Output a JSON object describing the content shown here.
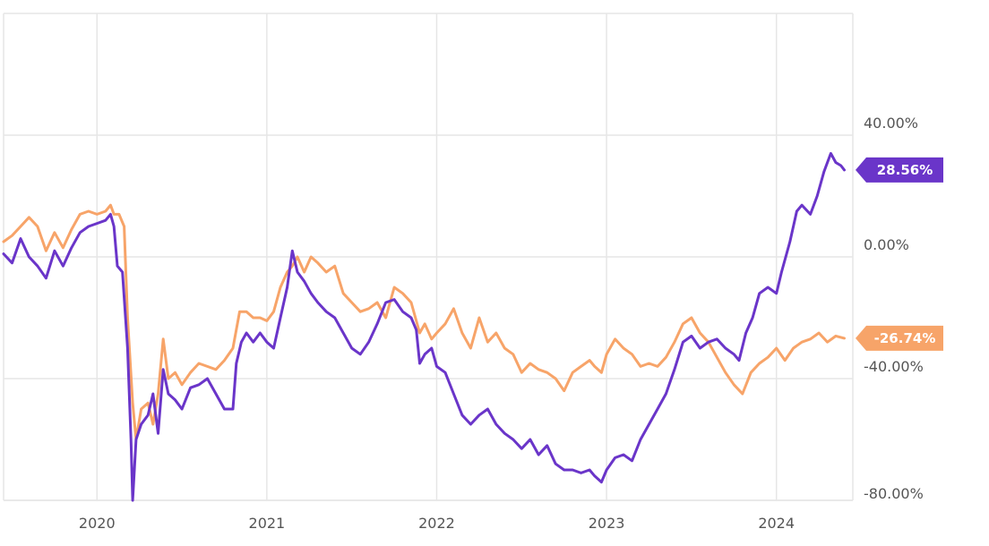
{
  "chart_data": {
    "type": "line",
    "title": "",
    "xlabel": "",
    "ylabel": "",
    "x_ticks": [
      "2020",
      "2021",
      "2022",
      "2023",
      "2024"
    ],
    "y_ticks": [
      "40.00%",
      "0.00%",
      "-40.00%",
      "-80.00%"
    ],
    "ylim": [
      -80,
      80
    ],
    "xlim": [
      2019.45,
      2024.45
    ],
    "grid": true,
    "colors": {
      "purple": "#6a35c9",
      "orange": "#f7a469"
    },
    "series": [
      {
        "key": "purple",
        "end_label": "28.56%",
        "points": [
          [
            2019.45,
            1
          ],
          [
            2019.5,
            -2
          ],
          [
            2019.55,
            6
          ],
          [
            2019.6,
            0
          ],
          [
            2019.65,
            -3
          ],
          [
            2019.7,
            -7
          ],
          [
            2019.75,
            2
          ],
          [
            2019.8,
            -3
          ],
          [
            2019.85,
            3
          ],
          [
            2019.9,
            8
          ],
          [
            2019.95,
            10
          ],
          [
            2020.0,
            11
          ],
          [
            2020.05,
            12
          ],
          [
            2020.08,
            14
          ],
          [
            2020.1,
            10
          ],
          [
            2020.12,
            -3
          ],
          [
            2020.15,
            -5
          ],
          [
            2020.18,
            -30
          ],
          [
            2020.2,
            -60
          ],
          [
            2020.21,
            -80
          ],
          [
            2020.23,
            -60
          ],
          [
            2020.26,
            -55
          ],
          [
            2020.3,
            -52
          ],
          [
            2020.33,
            -45
          ],
          [
            2020.36,
            -58
          ],
          [
            2020.39,
            -37
          ],
          [
            2020.42,
            -45
          ],
          [
            2020.46,
            -47
          ],
          [
            2020.5,
            -50
          ],
          [
            2020.55,
            -43
          ],
          [
            2020.6,
            -42
          ],
          [
            2020.65,
            -40
          ],
          [
            2020.7,
            -45
          ],
          [
            2020.75,
            -50
          ],
          [
            2020.8,
            -50
          ],
          [
            2020.82,
            -35
          ],
          [
            2020.85,
            -28
          ],
          [
            2020.88,
            -25
          ],
          [
            2020.92,
            -28
          ],
          [
            2020.96,
            -25
          ],
          [
            2021.0,
            -28
          ],
          [
            2021.04,
            -30
          ],
          [
            2021.08,
            -20
          ],
          [
            2021.12,
            -10
          ],
          [
            2021.15,
            2
          ],
          [
            2021.18,
            -5
          ],
          [
            2021.22,
            -8
          ],
          [
            2021.26,
            -12
          ],
          [
            2021.3,
            -15
          ],
          [
            2021.35,
            -18
          ],
          [
            2021.4,
            -20
          ],
          [
            2021.45,
            -25
          ],
          [
            2021.5,
            -30
          ],
          [
            2021.55,
            -32
          ],
          [
            2021.6,
            -28
          ],
          [
            2021.65,
            -22
          ],
          [
            2021.7,
            -15
          ],
          [
            2021.75,
            -14
          ],
          [
            2021.8,
            -18
          ],
          [
            2021.85,
            -20
          ],
          [
            2021.88,
            -24
          ],
          [
            2021.9,
            -35
          ],
          [
            2021.93,
            -32
          ],
          [
            2021.97,
            -30
          ],
          [
            2022.0,
            -36
          ],
          [
            2022.05,
            -38
          ],
          [
            2022.1,
            -45
          ],
          [
            2022.15,
            -52
          ],
          [
            2022.2,
            -55
          ],
          [
            2022.25,
            -52
          ],
          [
            2022.3,
            -50
          ],
          [
            2022.35,
            -55
          ],
          [
            2022.4,
            -58
          ],
          [
            2022.45,
            -60
          ],
          [
            2022.5,
            -63
          ],
          [
            2022.55,
            -60
          ],
          [
            2022.6,
            -65
          ],
          [
            2022.65,
            -62
          ],
          [
            2022.7,
            -68
          ],
          [
            2022.75,
            -70
          ],
          [
            2022.8,
            -70
          ],
          [
            2022.85,
            -71
          ],
          [
            2022.9,
            -70
          ],
          [
            2022.93,
            -72
          ],
          [
            2022.97,
            -74
          ],
          [
            2023.0,
            -70
          ],
          [
            2023.05,
            -66
          ],
          [
            2023.1,
            -65
          ],
          [
            2023.15,
            -67
          ],
          [
            2023.2,
            -60
          ],
          [
            2023.25,
            -55
          ],
          [
            2023.3,
            -50
          ],
          [
            2023.35,
            -45
          ],
          [
            2023.4,
            -37
          ],
          [
            2023.45,
            -28
          ],
          [
            2023.5,
            -26
          ],
          [
            2023.55,
            -30
          ],
          [
            2023.6,
            -28
          ],
          [
            2023.65,
            -27
          ],
          [
            2023.7,
            -30
          ],
          [
            2023.75,
            -32
          ],
          [
            2023.78,
            -34
          ],
          [
            2023.82,
            -25
          ],
          [
            2023.86,
            -20
          ],
          [
            2023.9,
            -12
          ],
          [
            2023.95,
            -10
          ],
          [
            2024.0,
            -12
          ],
          [
            2024.03,
            -5
          ],
          [
            2024.08,
            5
          ],
          [
            2024.12,
            15
          ],
          [
            2024.15,
            17
          ],
          [
            2024.2,
            14
          ],
          [
            2024.24,
            20
          ],
          [
            2024.28,
            28
          ],
          [
            2024.32,
            34
          ],
          [
            2024.35,
            31
          ],
          [
            2024.38,
            30
          ],
          [
            2024.4,
            28.56
          ]
        ]
      },
      {
        "key": "orange",
        "end_label": "-26.74%",
        "points": [
          [
            2019.45,
            5
          ],
          [
            2019.5,
            7
          ],
          [
            2019.55,
            10
          ],
          [
            2019.6,
            13
          ],
          [
            2019.65,
            10
          ],
          [
            2019.7,
            2
          ],
          [
            2019.75,
            8
          ],
          [
            2019.8,
            3
          ],
          [
            2019.85,
            9
          ],
          [
            2019.9,
            14
          ],
          [
            2019.95,
            15
          ],
          [
            2020.0,
            14
          ],
          [
            2020.05,
            15
          ],
          [
            2020.08,
            17
          ],
          [
            2020.1,
            14
          ],
          [
            2020.13,
            14
          ],
          [
            2020.16,
            10
          ],
          [
            2020.18,
            -20
          ],
          [
            2020.21,
            -48
          ],
          [
            2020.23,
            -60
          ],
          [
            2020.26,
            -50
          ],
          [
            2020.3,
            -48
          ],
          [
            2020.33,
            -55
          ],
          [
            2020.36,
            -45
          ],
          [
            2020.39,
            -27
          ],
          [
            2020.42,
            -40
          ],
          [
            2020.46,
            -38
          ],
          [
            2020.5,
            -42
          ],
          [
            2020.55,
            -38
          ],
          [
            2020.6,
            -35
          ],
          [
            2020.65,
            -36
          ],
          [
            2020.7,
            -37
          ],
          [
            2020.75,
            -34
          ],
          [
            2020.8,
            -30
          ],
          [
            2020.84,
            -18
          ],
          [
            2020.88,
            -18
          ],
          [
            2020.92,
            -20
          ],
          [
            2020.96,
            -20
          ],
          [
            2021.0,
            -21
          ],
          [
            2021.04,
            -18
          ],
          [
            2021.08,
            -10
          ],
          [
            2021.12,
            -5
          ],
          [
            2021.15,
            -3
          ],
          [
            2021.18,
            0
          ],
          [
            2021.22,
            -5
          ],
          [
            2021.26,
            0
          ],
          [
            2021.3,
            -2
          ],
          [
            2021.35,
            -5
          ],
          [
            2021.4,
            -3
          ],
          [
            2021.45,
            -12
          ],
          [
            2021.5,
            -15
          ],
          [
            2021.55,
            -18
          ],
          [
            2021.6,
            -17
          ],
          [
            2021.65,
            -15
          ],
          [
            2021.7,
            -20
          ],
          [
            2021.75,
            -10
          ],
          [
            2021.8,
            -12
          ],
          [
            2021.85,
            -15
          ],
          [
            2021.9,
            -25
          ],
          [
            2021.93,
            -22
          ],
          [
            2021.97,
            -27
          ],
          [
            2022.0,
            -25
          ],
          [
            2022.05,
            -22
          ],
          [
            2022.1,
            -17
          ],
          [
            2022.15,
            -25
          ],
          [
            2022.2,
            -30
          ],
          [
            2022.25,
            -20
          ],
          [
            2022.3,
            -28
          ],
          [
            2022.35,
            -25
          ],
          [
            2022.4,
            -30
          ],
          [
            2022.45,
            -32
          ],
          [
            2022.5,
            -38
          ],
          [
            2022.55,
            -35
          ],
          [
            2022.6,
            -37
          ],
          [
            2022.65,
            -38
          ],
          [
            2022.7,
            -40
          ],
          [
            2022.75,
            -44
          ],
          [
            2022.8,
            -38
          ],
          [
            2022.85,
            -36
          ],
          [
            2022.9,
            -34
          ],
          [
            2022.93,
            -36
          ],
          [
            2022.97,
            -38
          ],
          [
            2023.0,
            -32
          ],
          [
            2023.05,
            -27
          ],
          [
            2023.1,
            -30
          ],
          [
            2023.15,
            -32
          ],
          [
            2023.2,
            -36
          ],
          [
            2023.25,
            -35
          ],
          [
            2023.3,
            -36
          ],
          [
            2023.35,
            -33
          ],
          [
            2023.4,
            -28
          ],
          [
            2023.45,
            -22
          ],
          [
            2023.5,
            -20
          ],
          [
            2023.55,
            -25
          ],
          [
            2023.6,
            -28
          ],
          [
            2023.65,
            -33
          ],
          [
            2023.7,
            -38
          ],
          [
            2023.75,
            -42
          ],
          [
            2023.8,
            -45
          ],
          [
            2023.85,
            -38
          ],
          [
            2023.9,
            -35
          ],
          [
            2023.95,
            -33
          ],
          [
            2024.0,
            -30
          ],
          [
            2024.05,
            -34
          ],
          [
            2024.1,
            -30
          ],
          [
            2024.15,
            -28
          ],
          [
            2024.2,
            -27
          ],
          [
            2024.25,
            -25
          ],
          [
            2024.3,
            -28
          ],
          [
            2024.35,
            -26
          ],
          [
            2024.4,
            -26.74
          ]
        ]
      }
    ]
  }
}
